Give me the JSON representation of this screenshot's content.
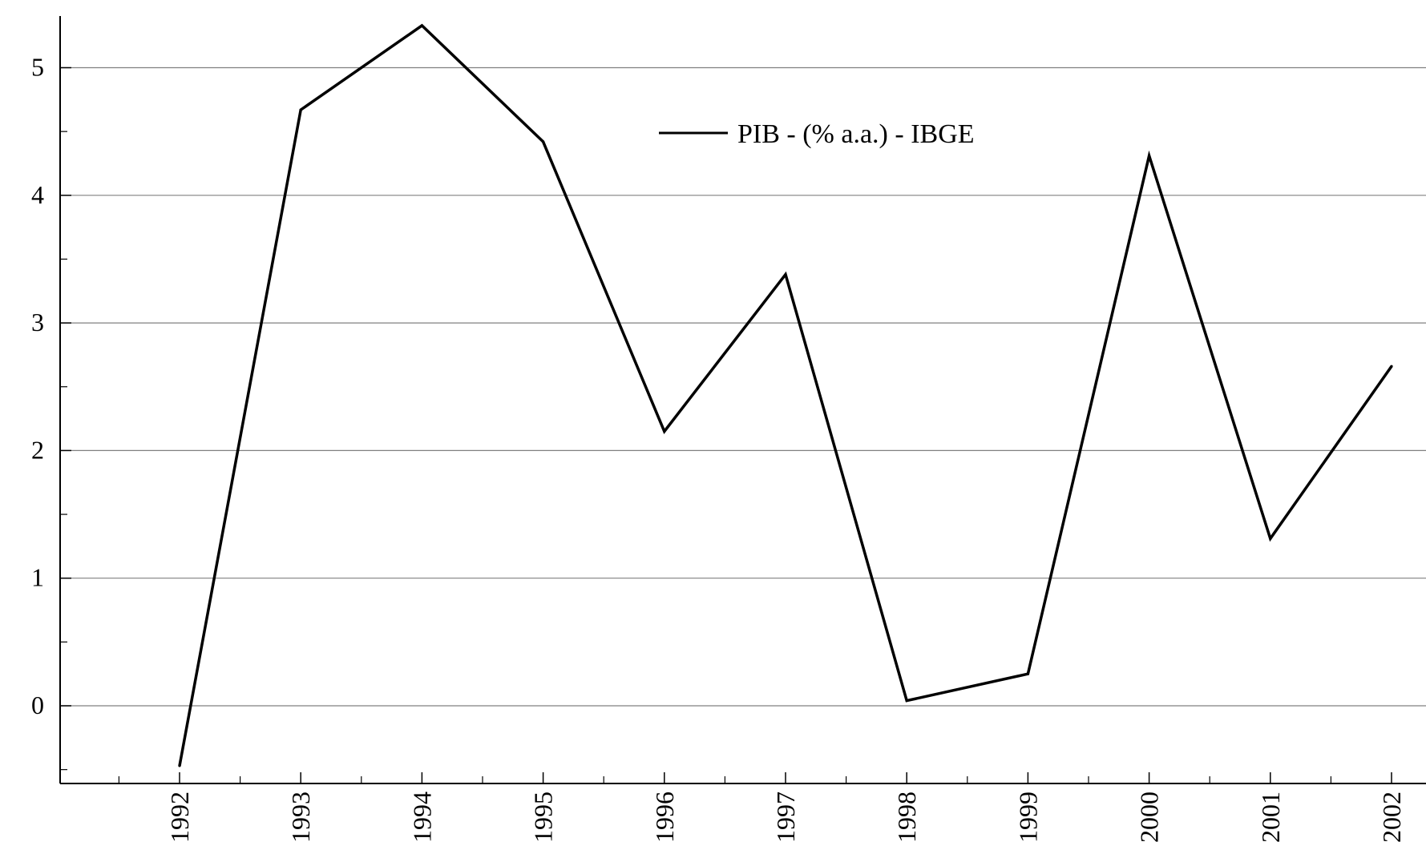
{
  "chart_data": {
    "type": "line",
    "title": "",
    "xlabel": "",
    "ylabel": "",
    "x": [
      "1992",
      "1993",
      "1994",
      "1995",
      "1996",
      "1997",
      "1998",
      "1999",
      "2000",
      "2001",
      "2002"
    ],
    "series": [
      {
        "name": "PIB - (% a.a.) - IBGE",
        "values": [
          -0.47,
          4.67,
          5.33,
          4.42,
          2.15,
          3.38,
          0.04,
          0.25,
          4.31,
          1.31,
          2.66
        ],
        "color": "#000000"
      }
    ],
    "yticks": [
      0,
      1,
      2,
      3,
      4,
      5
    ],
    "ylim": [
      -0.6,
      5.4
    ],
    "xlim": [
      1991,
      2002.3
    ],
    "grid": "horizontal",
    "legend_position": "top-center",
    "colors": {
      "line": "#000000",
      "grid": "#808080",
      "axis": "#000000"
    }
  }
}
